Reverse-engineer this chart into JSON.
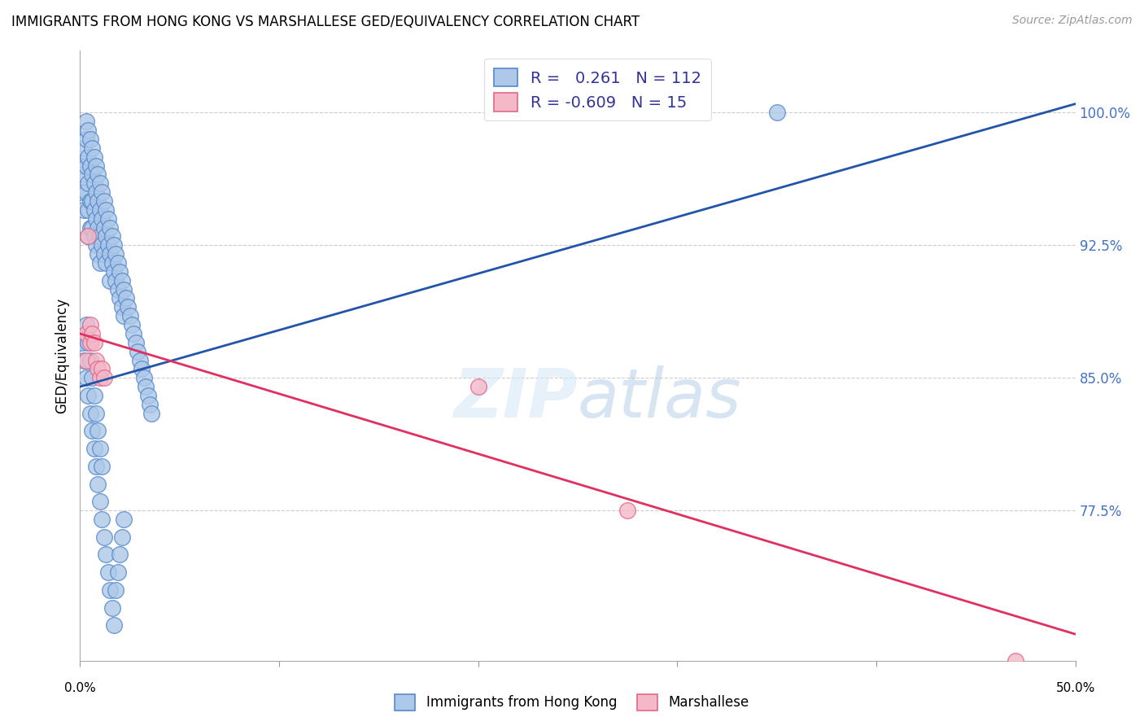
{
  "title": "IMMIGRANTS FROM HONG KONG VS MARSHALLESE GED/EQUIVALENCY CORRELATION CHART",
  "source": "Source: ZipAtlas.com",
  "ylabel": "GED/Equivalency",
  "ytick_labels": [
    "100.0%",
    "92.5%",
    "85.0%",
    "77.5%"
  ],
  "ytick_values": [
    1.0,
    0.925,
    0.85,
    0.775
  ],
  "xlim": [
    0.0,
    0.5
  ],
  "ylim": [
    0.69,
    1.035
  ],
  "hk_R": 0.261,
  "hk_N": 112,
  "marsh_R": -0.609,
  "marsh_N": 15,
  "hk_color": "#adc8e8",
  "hk_edge_color": "#5588cc",
  "marsh_color": "#f5b8c8",
  "marsh_edge_color": "#e06888",
  "trend_hk_color": "#2255aa",
  "trend_marsh_color": "#e03060",
  "trend_hk_x0": 0.0,
  "trend_hk_y0": 0.845,
  "trend_hk_x1": 0.5,
  "trend_hk_y1": 1.005,
  "trend_marsh_x0": 0.0,
  "trend_marsh_y0": 0.875,
  "trend_marsh_x1": 0.5,
  "trend_marsh_y1": 0.705,
  "legend_label_hk": "Immigrants from Hong Kong",
  "legend_label_marsh": "Marshallese",
  "hk_x": [
    0.001,
    0.001,
    0.002,
    0.002,
    0.002,
    0.003,
    0.003,
    0.003,
    0.003,
    0.004,
    0.004,
    0.004,
    0.004,
    0.004,
    0.005,
    0.005,
    0.005,
    0.005,
    0.006,
    0.006,
    0.006,
    0.006,
    0.007,
    0.007,
    0.007,
    0.007,
    0.008,
    0.008,
    0.008,
    0.008,
    0.009,
    0.009,
    0.009,
    0.009,
    0.01,
    0.01,
    0.01,
    0.01,
    0.011,
    0.011,
    0.011,
    0.012,
    0.012,
    0.012,
    0.013,
    0.013,
    0.013,
    0.014,
    0.014,
    0.015,
    0.015,
    0.015,
    0.016,
    0.016,
    0.017,
    0.017,
    0.018,
    0.018,
    0.019,
    0.019,
    0.02,
    0.02,
    0.021,
    0.021,
    0.022,
    0.022,
    0.023,
    0.024,
    0.025,
    0.026,
    0.027,
    0.028,
    0.029,
    0.03,
    0.031,
    0.032,
    0.033,
    0.034,
    0.035,
    0.036,
    0.001,
    0.002,
    0.003,
    0.004,
    0.005,
    0.006,
    0.007,
    0.008,
    0.009,
    0.01,
    0.011,
    0.012,
    0.013,
    0.014,
    0.015,
    0.016,
    0.017,
    0.018,
    0.019,
    0.02,
    0.021,
    0.022,
    0.003,
    0.004,
    0.005,
    0.006,
    0.007,
    0.008,
    0.009,
    0.01,
    0.011,
    0.35
  ],
  "hk_y": [
    0.97,
    0.955,
    0.98,
    0.965,
    0.945,
    0.995,
    0.985,
    0.97,
    0.955,
    0.99,
    0.975,
    0.96,
    0.945,
    0.93,
    0.985,
    0.97,
    0.95,
    0.935,
    0.98,
    0.965,
    0.95,
    0.935,
    0.975,
    0.96,
    0.945,
    0.93,
    0.97,
    0.955,
    0.94,
    0.925,
    0.965,
    0.95,
    0.935,
    0.92,
    0.96,
    0.945,
    0.93,
    0.915,
    0.955,
    0.94,
    0.925,
    0.95,
    0.935,
    0.92,
    0.945,
    0.93,
    0.915,
    0.94,
    0.925,
    0.935,
    0.92,
    0.905,
    0.93,
    0.915,
    0.925,
    0.91,
    0.92,
    0.905,
    0.915,
    0.9,
    0.91,
    0.895,
    0.905,
    0.89,
    0.9,
    0.885,
    0.895,
    0.89,
    0.885,
    0.88,
    0.875,
    0.87,
    0.865,
    0.86,
    0.855,
    0.85,
    0.845,
    0.84,
    0.835,
    0.83,
    0.87,
    0.86,
    0.85,
    0.84,
    0.83,
    0.82,
    0.81,
    0.8,
    0.79,
    0.78,
    0.77,
    0.76,
    0.75,
    0.74,
    0.73,
    0.72,
    0.71,
    0.73,
    0.74,
    0.75,
    0.76,
    0.77,
    0.88,
    0.87,
    0.86,
    0.85,
    0.84,
    0.83,
    0.82,
    0.81,
    0.8,
    1.0
  ],
  "marsh_x": [
    0.003,
    0.003,
    0.004,
    0.005,
    0.005,
    0.006,
    0.007,
    0.008,
    0.009,
    0.01,
    0.011,
    0.012,
    0.2,
    0.275,
    0.47
  ],
  "marsh_y": [
    0.875,
    0.86,
    0.93,
    0.88,
    0.87,
    0.875,
    0.87,
    0.86,
    0.855,
    0.85,
    0.855,
    0.85,
    0.845,
    0.775,
    0.69
  ]
}
